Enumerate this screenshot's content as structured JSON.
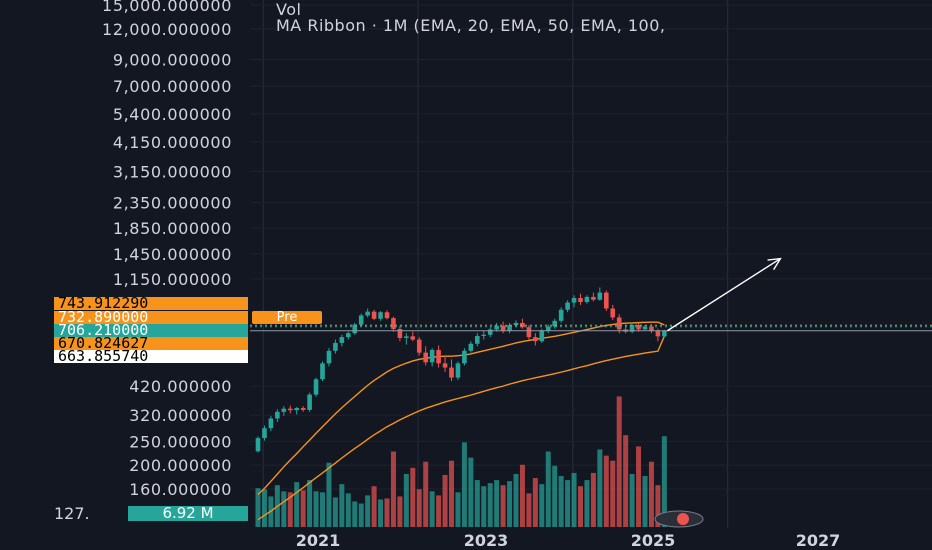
{
  "legend": {
    "volume": "Vol",
    "ribbon": "MA Ribbon · 1M (EMA, 20, EMA, 50, EMA, 100,"
  },
  "price_tags": [
    {
      "label": "743.912290",
      "bg": "#f7931a",
      "color": "#000000",
      "value": 743.91
    },
    {
      "label": "732.890000",
      "bg": "#f7931a",
      "color": "#ffffff",
      "value": 732.89
    },
    {
      "label": "706.210000",
      "bg": "#26a69a",
      "color": "#ffffff",
      "value": 706.21
    },
    {
      "label": "670.824627",
      "bg": "#f7931a",
      "color": "#000000",
      "value": 670.82
    },
    {
      "label": "663.855740",
      "bg": "#ffffff",
      "color": "#000000",
      "value": 663.86
    }
  ],
  "pre_label": "Pre",
  "volume_tag": {
    "left": "127.",
    "value": "6.92 M"
  },
  "colors": {
    "up": "#26a69a",
    "down": "#ef5350",
    "ema": "#f7931a",
    "background": "#131722",
    "grid": "#2a2e39",
    "arrow": "#ffffff"
  },
  "chart_data": {
    "type": "candlestick",
    "y_scale": "log",
    "y_ticks": [
      {
        "label": "15,000.000000",
        "value": 15000
      },
      {
        "label": "12,000.000000",
        "value": 12000
      },
      {
        "label": "9,000.000000",
        "value": 9000
      },
      {
        "label": "7,000.000000",
        "value": 7000
      },
      {
        "label": "5,400.000000",
        "value": 5400
      },
      {
        "label": "4,150.000000",
        "value": 4150
      },
      {
        "label": "3,150.000000",
        "value": 3150
      },
      {
        "label": "2,350.000000",
        "value": 2350
      },
      {
        "label": "1,850.000000",
        "value": 1850
      },
      {
        "label": "1,450.000000",
        "value": 1450
      },
      {
        "label": "1,150.000000",
        "value": 1150
      },
      {
        "label": "420.000000",
        "value": 420
      },
      {
        "label": "320.000000",
        "value": 320
      },
      {
        "label": "250.000000",
        "value": 250
      },
      {
        "label": "200.000000",
        "value": 200
      },
      {
        "label": "160.000000",
        "value": 160
      }
    ],
    "x_ticks": [
      "2021",
      "2023",
      "2025",
      "2027"
    ],
    "candles": [
      {
        "o": 228,
        "h": 262,
        "l": 225,
        "c": 258
      },
      {
        "o": 258,
        "h": 290,
        "l": 252,
        "c": 283
      },
      {
        "o": 283,
        "h": 318,
        "l": 275,
        "c": 310
      },
      {
        "o": 310,
        "h": 338,
        "l": 300,
        "c": 330
      },
      {
        "o": 330,
        "h": 348,
        "l": 318,
        "c": 340
      },
      {
        "o": 340,
        "h": 350,
        "l": 325,
        "c": 335
      },
      {
        "o": 335,
        "h": 345,
        "l": 322,
        "c": 342
      },
      {
        "o": 342,
        "h": 348,
        "l": 330,
        "c": 336
      },
      {
        "o": 336,
        "h": 395,
        "l": 330,
        "c": 388
      },
      {
        "o": 388,
        "h": 455,
        "l": 380,
        "c": 448
      },
      {
        "o": 448,
        "h": 530,
        "l": 440,
        "c": 520
      },
      {
        "o": 520,
        "h": 600,
        "l": 505,
        "c": 585
      },
      {
        "o": 585,
        "h": 650,
        "l": 570,
        "c": 630
      },
      {
        "o": 630,
        "h": 680,
        "l": 610,
        "c": 665
      },
      {
        "o": 665,
        "h": 700,
        "l": 650,
        "c": 690
      },
      {
        "o": 690,
        "h": 760,
        "l": 680,
        "c": 748
      },
      {
        "o": 748,
        "h": 830,
        "l": 735,
        "c": 815
      },
      {
        "o": 815,
        "h": 870,
        "l": 800,
        "c": 845
      },
      {
        "o": 845,
        "h": 860,
        "l": 780,
        "c": 790
      },
      {
        "o": 790,
        "h": 850,
        "l": 775,
        "c": 840
      },
      {
        "o": 840,
        "h": 855,
        "l": 785,
        "c": 795
      },
      {
        "o": 795,
        "h": 805,
        "l": 700,
        "c": 718
      },
      {
        "o": 718,
        "h": 740,
        "l": 640,
        "c": 660
      },
      {
        "o": 660,
        "h": 690,
        "l": 620,
        "c": 670
      },
      {
        "o": 670,
        "h": 700,
        "l": 640,
        "c": 650
      },
      {
        "o": 650,
        "h": 665,
        "l": 560,
        "c": 575
      },
      {
        "o": 575,
        "h": 610,
        "l": 510,
        "c": 525
      },
      {
        "o": 525,
        "h": 600,
        "l": 505,
        "c": 590
      },
      {
        "o": 590,
        "h": 615,
        "l": 500,
        "c": 520
      },
      {
        "o": 520,
        "h": 560,
        "l": 480,
        "c": 500
      },
      {
        "o": 500,
        "h": 540,
        "l": 440,
        "c": 455
      },
      {
        "o": 455,
        "h": 530,
        "l": 445,
        "c": 520
      },
      {
        "o": 520,
        "h": 600,
        "l": 510,
        "c": 585
      },
      {
        "o": 585,
        "h": 640,
        "l": 575,
        "c": 625
      },
      {
        "o": 625,
        "h": 690,
        "l": 610,
        "c": 672
      },
      {
        "o": 672,
        "h": 705,
        "l": 650,
        "c": 680
      },
      {
        "o": 680,
        "h": 730,
        "l": 665,
        "c": 715
      },
      {
        "o": 715,
        "h": 760,
        "l": 700,
        "c": 740
      },
      {
        "o": 740,
        "h": 770,
        "l": 690,
        "c": 705
      },
      {
        "o": 705,
        "h": 760,
        "l": 690,
        "c": 745
      },
      {
        "o": 745,
        "h": 778,
        "l": 735,
        "c": 760
      },
      {
        "o": 760,
        "h": 790,
        "l": 720,
        "c": 730
      },
      {
        "o": 730,
        "h": 745,
        "l": 650,
        "c": 665
      },
      {
        "o": 665,
        "h": 690,
        "l": 615,
        "c": 640
      },
      {
        "o": 640,
        "h": 720,
        "l": 630,
        "c": 705
      },
      {
        "o": 705,
        "h": 750,
        "l": 690,
        "c": 735
      },
      {
        "o": 735,
        "h": 790,
        "l": 720,
        "c": 775
      },
      {
        "o": 775,
        "h": 880,
        "l": 760,
        "c": 860
      },
      {
        "o": 860,
        "h": 940,
        "l": 840,
        "c": 920
      },
      {
        "o": 920,
        "h": 985,
        "l": 880,
        "c": 960
      },
      {
        "o": 960,
        "h": 1000,
        "l": 900,
        "c": 925
      },
      {
        "o": 925,
        "h": 985,
        "l": 910,
        "c": 970
      },
      {
        "o": 970,
        "h": 1010,
        "l": 930,
        "c": 945
      },
      {
        "o": 945,
        "h": 1060,
        "l": 935,
        "c": 1010
      },
      {
        "o": 1010,
        "h": 1030,
        "l": 850,
        "c": 870
      },
      {
        "o": 870,
        "h": 900,
        "l": 780,
        "c": 800
      },
      {
        "o": 800,
        "h": 825,
        "l": 690,
        "c": 715
      },
      {
        "o": 715,
        "h": 745,
        "l": 690,
        "c": 700
      },
      {
        "o": 700,
        "h": 765,
        "l": 690,
        "c": 745
      },
      {
        "o": 745,
        "h": 760,
        "l": 700,
        "c": 715
      },
      {
        "o": 715,
        "h": 745,
        "l": 710,
        "c": 735
      },
      {
        "o": 735,
        "h": 750,
        "l": 690,
        "c": 705
      },
      {
        "o": 705,
        "h": 720,
        "l": 640,
        "c": 670
      },
      {
        "o": 670,
        "h": 712,
        "l": 665,
        "c": 706
      }
    ],
    "volumes": [
      0.38,
      0.37,
      0.3,
      0.41,
      0.35,
      0.34,
      0.44,
      0.36,
      0.46,
      0.35,
      0.34,
      0.63,
      0.29,
      0.42,
      0.33,
      0.25,
      0.23,
      0.31,
      0.4,
      0.27,
      0.28,
      0.74,
      0.3,
      0.52,
      0.58,
      0.37,
      0.64,
      0.35,
      0.31,
      0.51,
      0.65,
      0.34,
      0.83,
      0.68,
      0.46,
      0.4,
      0.43,
      0.46,
      0.41,
      0.45,
      0.52,
      0.61,
      0.33,
      0.48,
      0.42,
      0.74,
      0.6,
      0.5,
      0.46,
      0.53,
      0.4,
      0.46,
      0.53,
      0.76,
      0.7,
      0.65,
      1.28,
      0.9,
      0.52,
      0.79,
      0.5,
      0.64,
      0.41,
      0.89
    ],
    "ema20": [
      152,
      161,
      172,
      184,
      197,
      210,
      223,
      238,
      253,
      270,
      287,
      305,
      324,
      343,
      362,
      381,
      402,
      423,
      443,
      461,
      480,
      496,
      509,
      521,
      532,
      540,
      545,
      551,
      554,
      556,
      556,
      559,
      562,
      568,
      577,
      585,
      593,
      602,
      610,
      620,
      630,
      638,
      645,
      652,
      658,
      664,
      670,
      678,
      687,
      696,
      705,
      714,
      724,
      734,
      742,
      749,
      755,
      758,
      760,
      762,
      764,
      765,
      765,
      746
    ],
    "ema50": [
      120,
      125,
      130,
      136,
      142,
      148,
      155,
      162,
      170,
      178,
      186,
      195,
      204,
      214,
      224,
      234,
      244,
      255,
      266,
      276,
      287,
      296,
      306,
      315,
      324,
      333,
      341,
      348,
      355,
      362,
      368,
      374,
      380,
      386,
      393,
      400,
      407,
      414,
      420,
      428,
      435,
      442,
      448,
      454,
      460,
      466,
      472,
      479,
      486,
      494,
      502,
      509,
      518,
      526,
      534,
      541,
      548,
      555,
      561,
      567,
      573,
      578,
      583,
      671
    ],
    "projection": {
      "from_value": 706,
      "to_value": 1390,
      "months_ahead": 18
    }
  }
}
